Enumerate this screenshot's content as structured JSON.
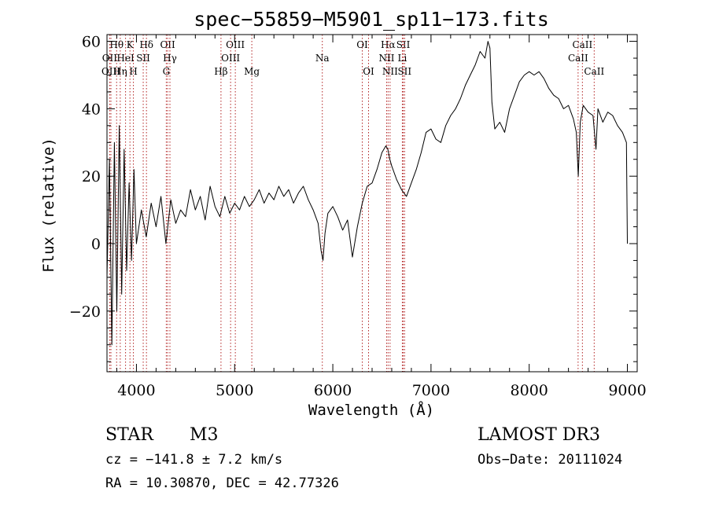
{
  "chart_data": {
    "type": "line",
    "title": "spec−55859−M5901_sp11−173.fits",
    "xlabel": "Wavelength (Å)",
    "ylabel": "Flux (relative)",
    "xlim": [
      3700,
      9100
    ],
    "ylim": [
      -38,
      62
    ],
    "x_ticks": [
      4000,
      5000,
      6000,
      7000,
      8000,
      9000
    ],
    "x_tick_labels": [
      "4000",
      "5000",
      "6000",
      "7000",
      "8000",
      "9000"
    ],
    "y_ticks": [
      -20,
      0,
      20,
      40,
      60
    ],
    "y_tick_labels": [
      "−20",
      "0",
      "20",
      "40",
      "60"
    ],
    "series": [
      {
        "name": "spectrum",
        "x": [
          3700,
          3725,
          3750,
          3775,
          3800,
          3825,
          3850,
          3875,
          3900,
          3925,
          3950,
          3975,
          4000,
          4050,
          4100,
          4150,
          4200,
          4250,
          4300,
          4350,
          4400,
          4450,
          4500,
          4550,
          4600,
          4650,
          4700,
          4750,
          4800,
          4850,
          4900,
          4950,
          5000,
          5050,
          5100,
          5150,
          5200,
          5250,
          5300,
          5350,
          5400,
          5450,
          5500,
          5550,
          5600,
          5650,
          5700,
          5750,
          5800,
          5850,
          5880,
          5900,
          5920,
          5950,
          6000,
          6050,
          6100,
          6150,
          6200,
          6250,
          6300,
          6350,
          6400,
          6450,
          6500,
          6540,
          6560,
          6580,
          6600,
          6650,
          6700,
          6750,
          6800,
          6850,
          6900,
          6950,
          7000,
          7050,
          7100,
          7150,
          7200,
          7250,
          7300,
          7350,
          7400,
          7450,
          7500,
          7550,
          7580,
          7600,
          7620,
          7650,
          7700,
          7750,
          7800,
          7850,
          7900,
          7950,
          8000,
          8050,
          8100,
          8150,
          8200,
          8250,
          8300,
          8350,
          8400,
          8450,
          8480,
          8500,
          8520,
          8550,
          8600,
          8650,
          8680,
          8700,
          8750,
          8800,
          8850,
          8900,
          8950,
          8990,
          9000
        ],
        "y": [
          -10,
          25,
          -30,
          30,
          -20,
          35,
          -15,
          28,
          -8,
          18,
          -5,
          22,
          0,
          10,
          2,
          12,
          5,
          14,
          0,
          13,
          6,
          10,
          8,
          16,
          10,
          14,
          7,
          17,
          11,
          8,
          14,
          9,
          12,
          10,
          14,
          11,
          13,
          16,
          12,
          15,
          13,
          17,
          14,
          16,
          12,
          15,
          17,
          13,
          10,
          6,
          -2,
          -5,
          3,
          9,
          11,
          8,
          4,
          7,
          -4,
          5,
          12,
          17,
          18,
          22,
          27,
          29,
          28,
          25,
          23,
          19,
          16,
          14,
          18,
          22,
          27,
          33,
          34,
          31,
          30,
          35,
          38,
          40,
          43,
          47,
          50,
          53,
          57,
          55,
          60,
          58,
          42,
          34,
          36,
          33,
          40,
          44,
          48,
          50,
          51,
          50,
          51,
          49,
          46,
          44,
          43,
          40,
          41,
          37,
          33,
          20,
          36,
          41,
          39,
          38,
          28,
          40,
          36,
          39,
          38,
          35,
          33,
          30,
          0
        ]
      }
    ],
    "line_markers": [
      {
        "label": "Hθ",
        "x": 3798,
        "row": 0
      },
      {
        "label": "K",
        "x": 3934,
        "row": 0
      },
      {
        "label": "Hδ",
        "x": 4102,
        "row": 0
      },
      {
        "label": "OII",
        "x": 4318,
        "row": 0
      },
      {
        "label": "OIII",
        "x": 5007,
        "row": 0
      },
      {
        "label": "OI",
        "x": 6300,
        "row": 0
      },
      {
        "label": "Hα",
        "x": 6563,
        "row": 0
      },
      {
        "label": "SII",
        "x": 6717,
        "row": 0
      },
      {
        "label": "CaII",
        "x": 8542,
        "row": 0
      },
      {
        "label": "OII",
        "x": 3727,
        "row": 1
      },
      {
        "label": "HeI",
        "x": 3889,
        "row": 1
      },
      {
        "label": "SII",
        "x": 4069,
        "row": 1
      },
      {
        "label": "Hγ",
        "x": 4341,
        "row": 1
      },
      {
        "label": "OIII",
        "x": 4959,
        "row": 1
      },
      {
        "label": "Na",
        "x": 5893,
        "row": 1
      },
      {
        "label": "NII",
        "x": 6548,
        "row": 1
      },
      {
        "label": "Li",
        "x": 6708,
        "row": 1
      },
      {
        "label": "CaII",
        "x": 8498,
        "row": 1
      },
      {
        "label": "OIII",
        "x": 3740,
        "row": 2
      },
      {
        "label": "Hη",
        "x": 3835,
        "row": 2
      },
      {
        "label": "H",
        "x": 3969,
        "row": 2
      },
      {
        "label": "G",
        "x": 4304,
        "row": 2
      },
      {
        "label": "Hβ",
        "x": 4861,
        "row": 2
      },
      {
        "label": "Mg",
        "x": 5175,
        "row": 2
      },
      {
        "label": "OI",
        "x": 6364,
        "row": 2
      },
      {
        "label": "NII",
        "x": 6583,
        "row": 2
      },
      {
        "label": "SII",
        "x": 6731,
        "row": 2
      },
      {
        "label": "CaII",
        "x": 8662,
        "row": 2
      }
    ]
  },
  "info": {
    "object_class": "STAR",
    "subclass": "M3",
    "survey": "LAMOST DR3",
    "redshift": "cz = −141.8 ± 7.2 km/s",
    "obs_date": "Obs−Date: 20111024",
    "coords": "RA =  10.30870, DEC =  42.77326"
  },
  "colors": {
    "line_marker": "#b22222",
    "spectrum": "#000000"
  }
}
